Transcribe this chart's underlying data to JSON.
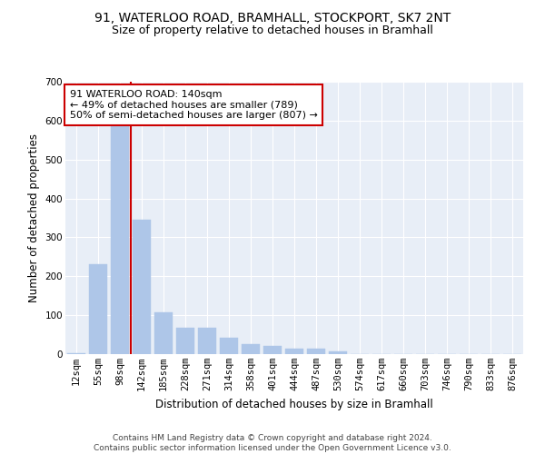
{
  "title": "91, WATERLOO ROAD, BRAMHALL, STOCKPORT, SK7 2NT",
  "subtitle": "Size of property relative to detached houses in Bramhall",
  "xlabel": "Distribution of detached houses by size in Bramhall",
  "ylabel": "Number of detached properties",
  "categories": [
    "12sqm",
    "55sqm",
    "98sqm",
    "142sqm",
    "185sqm",
    "228sqm",
    "271sqm",
    "314sqm",
    "358sqm",
    "401sqm",
    "444sqm",
    "487sqm",
    "530sqm",
    "574sqm",
    "617sqm",
    "660sqm",
    "703sqm",
    "746sqm",
    "790sqm",
    "833sqm",
    "876sqm"
  ],
  "values": [
    3,
    230,
    620,
    345,
    108,
    67,
    67,
    42,
    25,
    22,
    15,
    13,
    7,
    0,
    0,
    0,
    0,
    0,
    0,
    0,
    0
  ],
  "bar_color": "#aec6e8",
  "bar_edge_color": "#aec6e8",
  "vline_color": "#cc0000",
  "annotation_text": "91 WATERLOO ROAD: 140sqm\n← 49% of detached houses are smaller (789)\n50% of semi-detached houses are larger (807) →",
  "annotation_box_color": "#ffffff",
  "annotation_box_edge_color": "#cc0000",
  "ylim": [
    0,
    700
  ],
  "yticks": [
    0,
    100,
    200,
    300,
    400,
    500,
    600,
    700
  ],
  "plot_bg_color": "#e8eef7",
  "footer_text": "Contains HM Land Registry data © Crown copyright and database right 2024.\nContains public sector information licensed under the Open Government Licence v3.0.",
  "title_fontsize": 10,
  "subtitle_fontsize": 9,
  "xlabel_fontsize": 8.5,
  "ylabel_fontsize": 8.5,
  "tick_fontsize": 7.5,
  "annotation_fontsize": 8,
  "footer_fontsize": 6.5
}
